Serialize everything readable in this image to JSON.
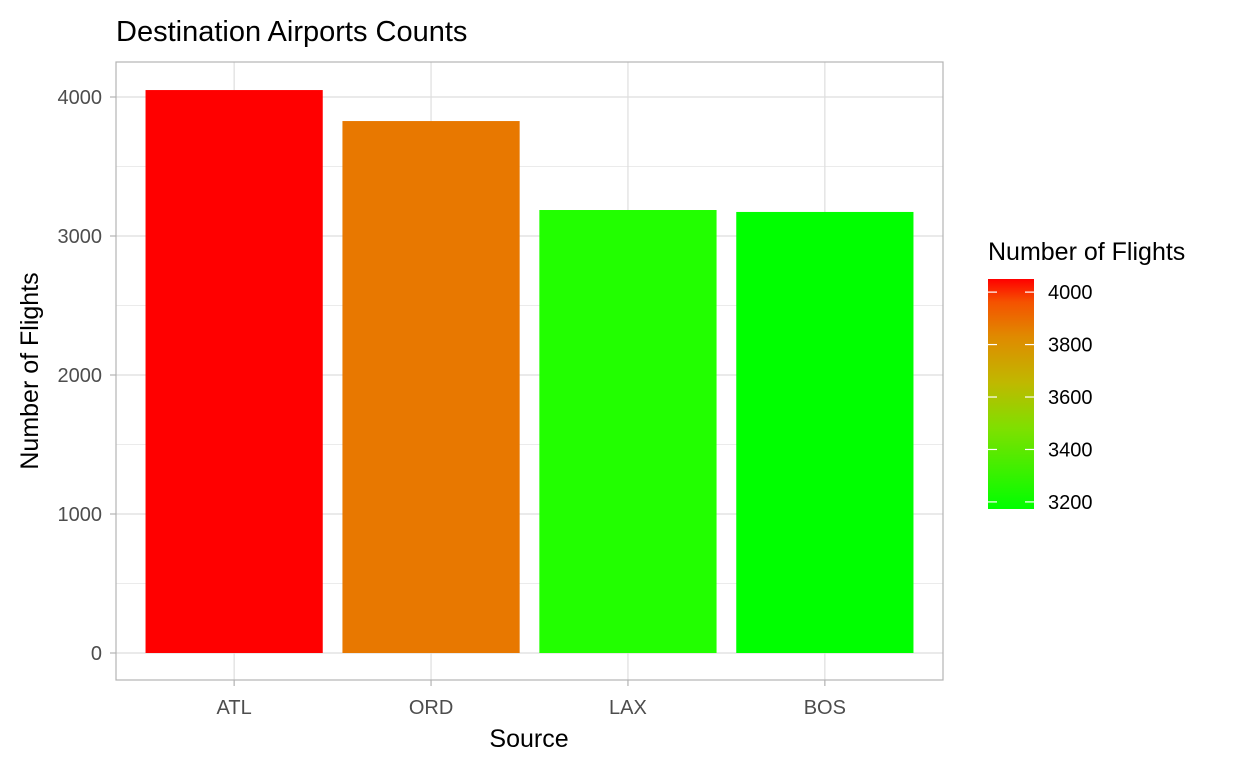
{
  "chart_data": {
    "type": "bar",
    "title": "Destination Airports Counts",
    "xlabel": "Source",
    "ylabel": "Number of Flights",
    "categories": [
      "ATL",
      "ORD",
      "LAX",
      "BOS"
    ],
    "values": [
      4050,
      3827,
      3187,
      3173
    ],
    "ylim": [
      -190,
      4240
    ],
    "yticks": [
      0,
      1000,
      2000,
      3000,
      4000
    ],
    "grid": true,
    "legend": {
      "title": "Number of Flights",
      "type": "colorbar",
      "placement": "right",
      "ticks": [
        4000,
        3800,
        3600,
        3400,
        3200
      ],
      "range": [
        3173,
        4050
      ],
      "low_color": "#00ff00",
      "high_color": "#ff0000"
    },
    "bar_colors": [
      "#ff0000",
      "#e87800",
      "#22ff00",
      "#00ff00"
    ]
  }
}
